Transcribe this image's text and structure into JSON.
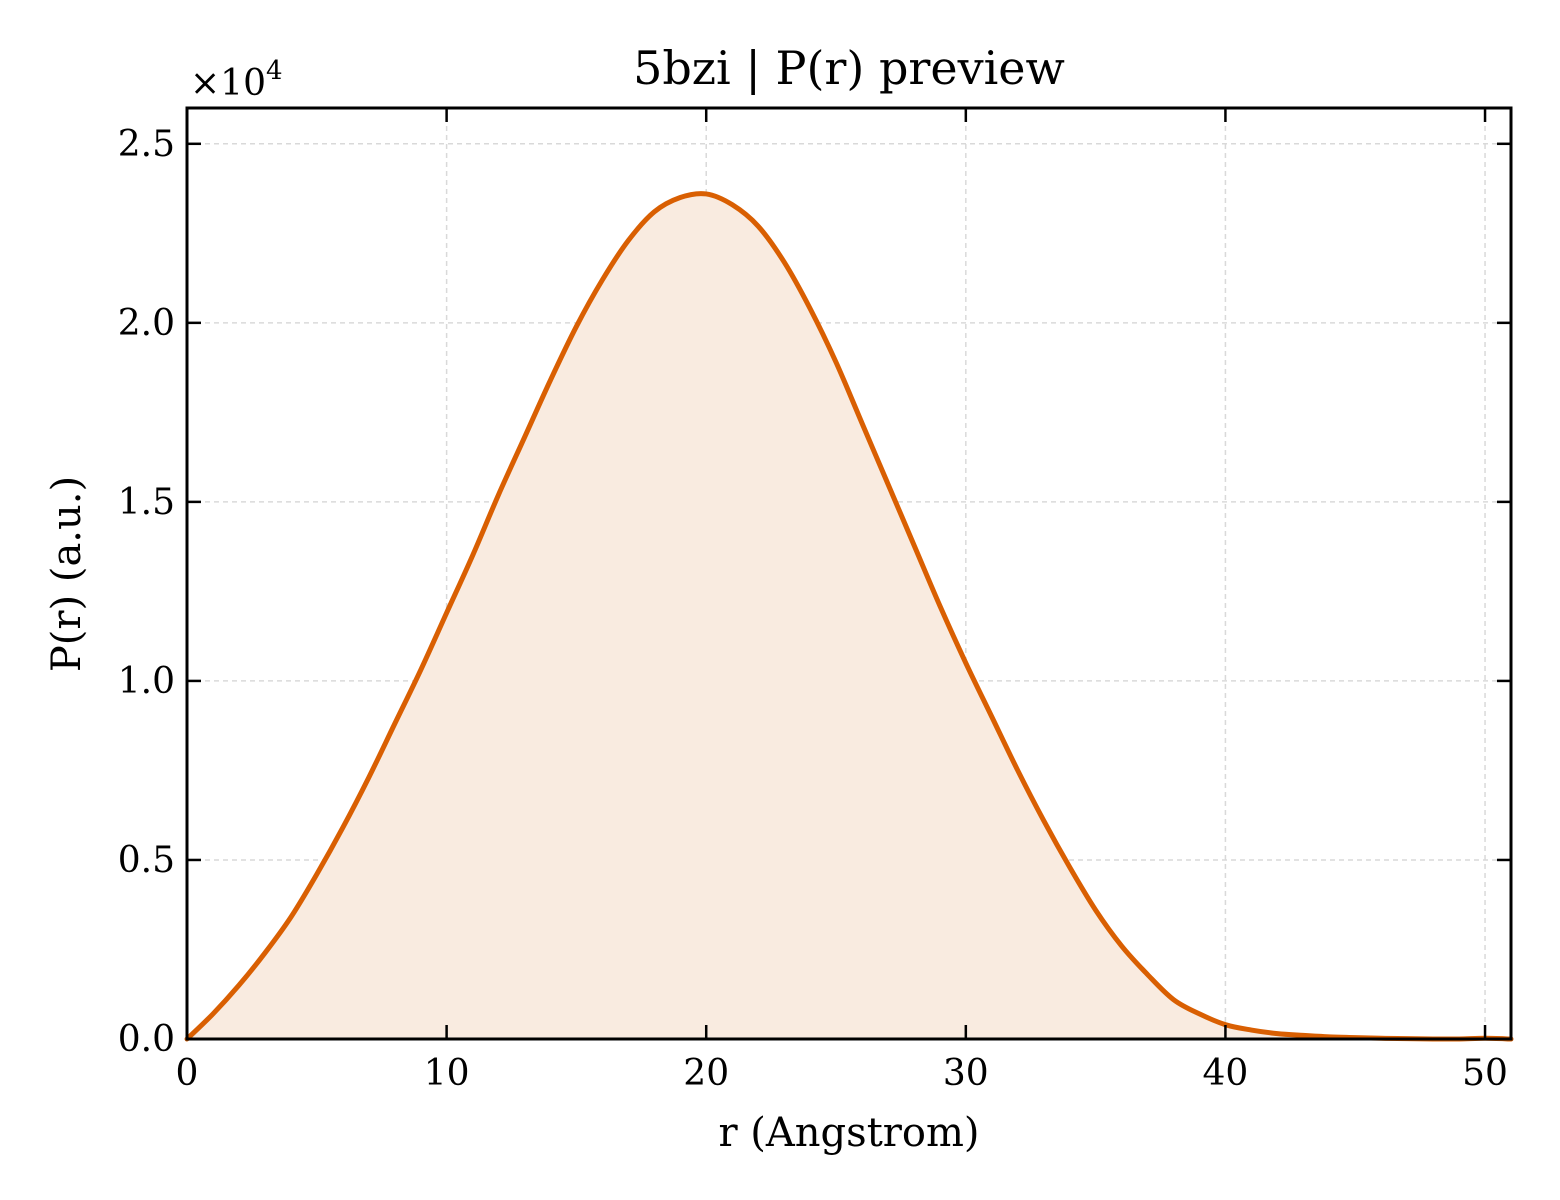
{
  "chart_data": {
    "type": "area",
    "title": "5bzi | P(r) preview",
    "xlabel": "r (Angstrom)",
    "ylabel": "P(r) (a.u.)",
    "y_multiplier_base": "×10",
    "y_multiplier_exp": "4",
    "xlim": [
      0,
      51
    ],
    "ylim": [
      0,
      2.6
    ],
    "x_ticks": [
      0,
      10,
      20,
      30,
      40,
      50
    ],
    "x_tick_labels": [
      "0",
      "10",
      "20",
      "30",
      "40",
      "50"
    ],
    "y_ticks": [
      0,
      0.5,
      1.0,
      1.5,
      2.0,
      2.5
    ],
    "y_tick_labels": [
      "0.0",
      "0.5",
      "1.0",
      "1.5",
      "2.0",
      "2.5"
    ],
    "grid": true,
    "line_color": "#d95f02",
    "fill_color": "#f9ebe0",
    "series": [
      {
        "x": [
          0,
          1,
          2,
          3,
          4,
          5,
          6,
          7,
          8,
          9,
          10,
          11,
          12,
          13,
          14,
          15,
          16,
          17,
          18,
          19,
          20,
          21,
          22,
          23,
          24,
          25,
          26,
          27,
          28,
          29,
          30,
          31,
          32,
          33,
          34,
          35,
          36,
          37,
          38,
          39,
          40,
          41,
          42,
          43,
          44,
          45,
          46,
          47,
          48,
          49,
          50,
          51
        ],
        "y": [
          0.0,
          0.07,
          0.15,
          0.24,
          0.34,
          0.46,
          0.59,
          0.73,
          0.88,
          1.03,
          1.19,
          1.35,
          1.52,
          1.68,
          1.84,
          1.99,
          2.12,
          2.23,
          2.31,
          2.35,
          2.36,
          2.33,
          2.27,
          2.17,
          2.04,
          1.89,
          1.72,
          1.55,
          1.38,
          1.21,
          1.05,
          0.9,
          0.75,
          0.61,
          0.48,
          0.36,
          0.26,
          0.18,
          0.11,
          0.07,
          0.04,
          0.025,
          0.015,
          0.01,
          0.006,
          0.004,
          0.002,
          0.001,
          0.0,
          0.0,
          0.002,
          0.0
        ]
      }
    ]
  }
}
